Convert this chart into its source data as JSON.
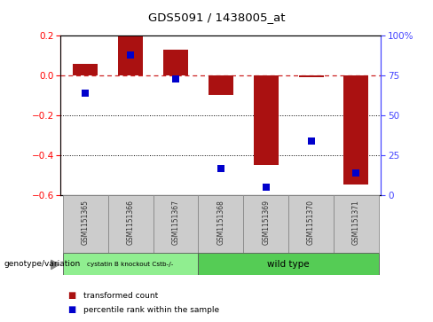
{
  "title": "GDS5091 / 1438005_at",
  "samples": [
    "GSM1151365",
    "GSM1151366",
    "GSM1151367",
    "GSM1151368",
    "GSM1151369",
    "GSM1151370",
    "GSM1151371"
  ],
  "red_bars": [
    0.055,
    0.2,
    0.13,
    -0.1,
    -0.45,
    -0.01,
    -0.55
  ],
  "blue_dots_left": [
    -0.09,
    0.1,
    -0.02,
    -0.47,
    -0.56,
    -0.33,
    -0.49
  ],
  "red_bar_color": "#aa1111",
  "blue_dot_color": "#0000cc",
  "ylim_left": [
    -0.6,
    0.2
  ],
  "ylim_right": [
    0,
    100
  ],
  "right_ticks": [
    0,
    25,
    50,
    75,
    100
  ],
  "right_tick_labels": [
    "0",
    "25",
    "50",
    "75",
    "100%"
  ],
  "left_ticks": [
    -0.6,
    -0.4,
    -0.2,
    0.0,
    0.2
  ],
  "hline_y": 0.0,
  "dotted_lines": [
    -0.2,
    -0.4
  ],
  "group1_label": "cystatin B knockout Cstb-/-",
  "group2_label": "wild type",
  "group1_color": "#90ee90",
  "group2_color": "#55cc55",
  "legend_label1": "transformed count",
  "legend_label2": "percentile rank within the sample",
  "genotype_label": "genotype/variation",
  "bar_width": 0.55,
  "blue_dot_size": 35,
  "gray_box_color": "#cccccc",
  "gray_box_light": "#dddddd"
}
